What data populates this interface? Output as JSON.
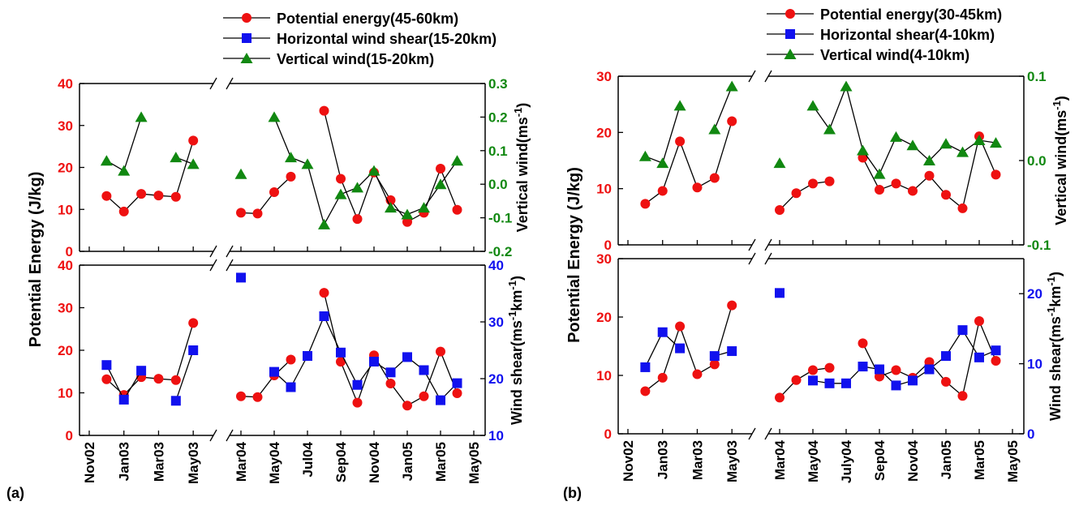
{
  "colors": {
    "pe": "#ee1111",
    "shear": "#1111ee",
    "vw": "#118811",
    "axis": "#000000"
  },
  "chart_data": [
    {
      "panel_label": "(a)",
      "type": "line",
      "x_tick_labels": [
        "Nov02",
        "Jan03",
        "Mar03",
        "May03",
        "Mar04",
        "May04",
        "Jul04",
        "Sep04",
        "Nov04",
        "Jan05",
        "Mar05",
        "May05"
      ],
      "legend": [
        {
          "series": "pe",
          "label": "Potential energy(45-60km)"
        },
        {
          "series": "shear",
          "label": "Horizontal wind shear(15-20km)"
        },
        {
          "series": "vw",
          "label": "Vertical wind(15-20km)"
        }
      ],
      "ylabel_left": "Potential Energy (J/kg)",
      "top": {
        "ylim_left": [
          0,
          40
        ],
        "yticks_left": [
          "0",
          "10",
          "20",
          "30",
          "40"
        ],
        "ylim_right": [
          -0.2,
          0.3
        ],
        "yticks_right": [
          "-0.2",
          "-0.1",
          "0.0",
          "0.1",
          "0.2",
          "0.3"
        ],
        "ylabel_right": "Vertical wind(ms-1)",
        "pe": [
          [
            0.5,
            13.2
          ],
          [
            1.0,
            9.5
          ],
          [
            1.5,
            13.7
          ],
          [
            2.0,
            13.3
          ],
          [
            2.5,
            13.0
          ],
          [
            3.0,
            26.4
          ],
          [
            4.0,
            9.2
          ],
          [
            4.5,
            9.0
          ],
          [
            5.0,
            14.1
          ],
          [
            5.5,
            17.8
          ],
          [
            6.5,
            33.5
          ],
          [
            7.0,
            17.3
          ],
          [
            7.5,
            7.7
          ],
          [
            8.0,
            18.8
          ],
          [
            8.5,
            12.2
          ],
          [
            9.0,
            7.0
          ],
          [
            9.5,
            9.2
          ],
          [
            10.0,
            19.7
          ],
          [
            10.5,
            9.9
          ]
        ],
        "vw": [
          [
            0.5,
            0.07
          ],
          [
            1.0,
            0.04
          ],
          [
            1.5,
            0.2
          ],
          [
            2.5,
            0.08
          ],
          [
            3.0,
            0.06
          ],
          [
            4.0,
            0.03
          ],
          [
            5.0,
            0.2
          ],
          [
            5.5,
            0.08
          ],
          [
            6.0,
            0.06
          ],
          [
            6.5,
            -0.12
          ],
          [
            7.0,
            -0.03
          ],
          [
            7.5,
            -0.01
          ],
          [
            8.0,
            0.04
          ],
          [
            8.5,
            -0.07
          ],
          [
            9.0,
            -0.09
          ],
          [
            9.5,
            -0.07
          ],
          [
            10.0,
            0.0
          ],
          [
            10.5,
            0.07
          ]
        ]
      },
      "bottom": {
        "ylim_left": [
          0,
          40
        ],
        "yticks_left": [
          "0",
          "10",
          "20",
          "30",
          "40"
        ],
        "ylim_right": [
          10,
          40
        ],
        "yticks_right": [
          "10",
          "20",
          "30",
          "40"
        ],
        "ylabel_right": "Wind shear(ms-1km-1)",
        "pe": [
          [
            0.5,
            13.2
          ],
          [
            1.0,
            9.5
          ],
          [
            1.5,
            13.7
          ],
          [
            2.0,
            13.3
          ],
          [
            2.5,
            13.0
          ],
          [
            3.0,
            26.4
          ],
          [
            4.0,
            9.2
          ],
          [
            4.5,
            9.0
          ],
          [
            5.0,
            14.1
          ],
          [
            5.5,
            17.8
          ],
          [
            6.5,
            33.5
          ],
          [
            7.0,
            17.3
          ],
          [
            7.5,
            7.7
          ],
          [
            8.0,
            18.8
          ],
          [
            8.5,
            12.2
          ],
          [
            9.0,
            7.0
          ],
          [
            9.5,
            9.2
          ],
          [
            10.0,
            19.7
          ],
          [
            10.5,
            9.9
          ]
        ],
        "shear": [
          [
            0.5,
            22.4
          ],
          [
            1.0,
            16.3
          ],
          [
            1.5,
            21.4
          ],
          [
            2.5,
            16.1
          ],
          [
            3.0,
            25.0
          ],
          [
            4.0,
            37.8
          ],
          [
            5.0,
            21.2
          ],
          [
            5.5,
            18.5
          ],
          [
            6.0,
            24.0
          ],
          [
            6.5,
            31.0
          ],
          [
            7.0,
            24.6
          ],
          [
            7.5,
            18.9
          ],
          [
            8.0,
            23.0
          ],
          [
            8.5,
            21.1
          ],
          [
            9.0,
            23.8
          ],
          [
            9.5,
            21.5
          ],
          [
            10.0,
            16.2
          ],
          [
            10.5,
            19.2
          ]
        ]
      }
    },
    {
      "panel_label": "(b)",
      "type": "line",
      "x_tick_labels": [
        "Nov02",
        "Jan03",
        "Mar03",
        "May03",
        "Mar04",
        "May04",
        "July04",
        "Sep04",
        "Nov04",
        "Jan05",
        "Mar05",
        "May05"
      ],
      "legend": [
        {
          "series": "pe",
          "label": "Potential energy(30-45km)"
        },
        {
          "series": "shear",
          "label": "Horizontal shear(4-10km)"
        },
        {
          "series": "vw",
          "label": "Vertical wind(4-10km)"
        }
      ],
      "ylabel_left": "Potential Energy (J/kg)",
      "top": {
        "ylim_left": [
          0,
          30
        ],
        "yticks_left": [
          "0",
          "10",
          "20",
          "30"
        ],
        "ylim_right": [
          -0.1,
          0.1
        ],
        "yticks_right": [
          "-0.1",
          "0.0",
          "0.1"
        ],
        "ylabel_right": "Vertical wind(ms-1)",
        "pe": [
          [
            0.5,
            7.3
          ],
          [
            1.0,
            9.6
          ],
          [
            1.5,
            18.4
          ],
          [
            2.0,
            10.2
          ],
          [
            2.5,
            11.9
          ],
          [
            3.0,
            22.0
          ],
          [
            4.0,
            6.2
          ],
          [
            4.5,
            9.2
          ],
          [
            5.0,
            10.9
          ],
          [
            5.5,
            11.3
          ],
          [
            6.5,
            15.5
          ],
          [
            7.0,
            9.8
          ],
          [
            7.5,
            10.9
          ],
          [
            8.0,
            9.6
          ],
          [
            8.5,
            12.3
          ],
          [
            9.0,
            8.9
          ],
          [
            9.5,
            6.5
          ],
          [
            10.0,
            19.3
          ],
          [
            10.5,
            12.5
          ]
        ],
        "vw": [
          [
            0.5,
            0.005
          ],
          [
            1.0,
            -0.003
          ],
          [
            1.5,
            0.065
          ],
          [
            2.5,
            0.037
          ],
          [
            3.0,
            0.088
          ],
          [
            4.0,
            -0.003
          ],
          [
            5.0,
            0.065
          ],
          [
            5.5,
            0.037
          ],
          [
            6.0,
            0.088
          ],
          [
            6.5,
            0.012
          ],
          [
            7.0,
            -0.016
          ],
          [
            7.5,
            0.028
          ],
          [
            8.0,
            0.018
          ],
          [
            8.5,
            0.0
          ],
          [
            9.0,
            0.02
          ],
          [
            9.5,
            0.01
          ],
          [
            10.0,
            0.024
          ],
          [
            10.5,
            0.021
          ]
        ]
      },
      "bottom": {
        "ylim_left": [
          0,
          30
        ],
        "yticks_left": [
          "0",
          "10",
          "20",
          "30"
        ],
        "ylim_right": [
          0,
          25
        ],
        "yticks_right": [
          "0",
          "10",
          "20"
        ],
        "ylabel_right": "Wind shear(ms-1km-1)",
        "pe": [
          [
            0.5,
            7.3
          ],
          [
            1.0,
            9.6
          ],
          [
            1.5,
            18.4
          ],
          [
            2.0,
            10.2
          ],
          [
            2.5,
            11.9
          ],
          [
            3.0,
            22.0
          ],
          [
            4.0,
            6.2
          ],
          [
            4.5,
            9.2
          ],
          [
            5.0,
            10.9
          ],
          [
            5.5,
            11.3
          ],
          [
            6.5,
            15.5
          ],
          [
            7.0,
            9.8
          ],
          [
            7.5,
            10.9
          ],
          [
            8.0,
            9.6
          ],
          [
            8.5,
            12.3
          ],
          [
            9.0,
            8.9
          ],
          [
            9.5,
            6.5
          ],
          [
            10.0,
            19.3
          ],
          [
            10.5,
            12.5
          ]
        ],
        "shear": [
          [
            0.5,
            9.5
          ],
          [
            1.0,
            14.5
          ],
          [
            1.5,
            12.2
          ],
          [
            2.5,
            11.1
          ],
          [
            3.0,
            11.8
          ],
          [
            4.0,
            20.1
          ],
          [
            5.0,
            7.6
          ],
          [
            5.5,
            7.2
          ],
          [
            6.0,
            7.2
          ],
          [
            6.5,
            9.6
          ],
          [
            7.0,
            9.2
          ],
          [
            7.5,
            6.9
          ],
          [
            8.0,
            7.6
          ],
          [
            8.5,
            9.2
          ],
          [
            9.0,
            11.1
          ],
          [
            9.5,
            14.8
          ],
          [
            10.0,
            10.9
          ],
          [
            10.5,
            11.9
          ]
        ]
      }
    }
  ]
}
